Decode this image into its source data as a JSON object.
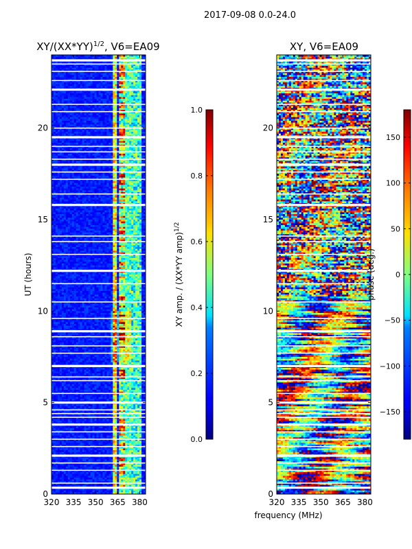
{
  "suptitle": "2017-09-08 0.0-24.0",
  "chart_data": [
    {
      "type": "heatmap",
      "title": "XY/(XX*YY)^1/2, V6=EA09",
      "title_main": "XY/(XX*YY)",
      "title_sup": "1/2",
      "title_tail": ", V6=EA09",
      "xlabel": "",
      "ylabel": "UT (hours)",
      "xlim": [
        320,
        384
      ],
      "ylim": [
        0,
        24
      ],
      "xticks": [
        320,
        335,
        350,
        365,
        380
      ],
      "yticks": [
        0,
        5,
        10,
        15,
        20
      ],
      "colormap": "jet",
      "colorbar": {
        "label_main": "XY amp. / (XX*YY amp)",
        "label_sup": "1/2",
        "range": [
          0.0,
          1.0
        ],
        "ticks": [
          "0.0",
          "0.2",
          "0.4",
          "0.6",
          "0.8",
          "1.0"
        ],
        "tick_values": [
          0.0,
          0.2,
          0.4,
          0.6,
          0.8,
          1.0
        ]
      },
      "gaps_ut_hours": [
        0.35,
        0.6,
        1.3,
        1.7,
        2.1,
        2.6,
        3.0,
        3.4,
        3.8,
        4.2,
        4.4,
        4.6,
        5.0,
        5.5,
        6.2,
        6.4,
        7.0,
        7.7,
        8.1,
        8.6,
        8.9,
        9.6,
        10.5,
        11.5,
        12.2,
        13.1,
        13.8,
        14.1,
        15.8,
        16.4,
        17.2,
        17.6,
        18.0,
        18.3,
        18.7,
        19.0,
        19.5,
        20.0,
        20.9,
        21.3,
        22.1,
        22.6,
        23.1,
        23.5,
        23.7
      ]
    },
    {
      "type": "heatmap",
      "title": "XY, V6=EA09",
      "xlabel": "frequency (MHz)",
      "ylabel": "",
      "xlim": [
        320,
        384
      ],
      "ylim": [
        0,
        24
      ],
      "xticks": [
        320,
        335,
        350,
        365,
        380
      ],
      "yticks": [
        0,
        5,
        10,
        15,
        20
      ],
      "colormap": "jet",
      "colorbar": {
        "label": "phase (deg.)",
        "range": [
          -180,
          180
        ],
        "ticks": [
          "−150",
          "−100",
          "−50",
          "0",
          "50",
          "100",
          "150"
        ],
        "tick_values": [
          -150,
          -100,
          -50,
          0,
          50,
          100,
          150
        ]
      },
      "gaps_ut_hours": [
        0.35,
        0.6,
        1.3,
        1.7,
        2.1,
        2.6,
        3.0,
        3.4,
        3.8,
        4.2,
        4.4,
        4.6,
        5.0,
        5.5,
        6.2,
        6.4,
        7.0,
        7.7,
        8.1,
        8.6,
        8.9,
        9.6,
        10.5,
        11.5,
        12.2,
        13.1,
        13.8,
        14.1,
        15.8,
        16.4,
        17.2,
        17.6,
        18.0,
        18.3,
        18.7,
        19.0,
        19.5,
        20.0,
        20.9,
        21.3,
        22.1,
        22.6,
        23.1,
        23.5,
        23.7
      ]
    }
  ]
}
